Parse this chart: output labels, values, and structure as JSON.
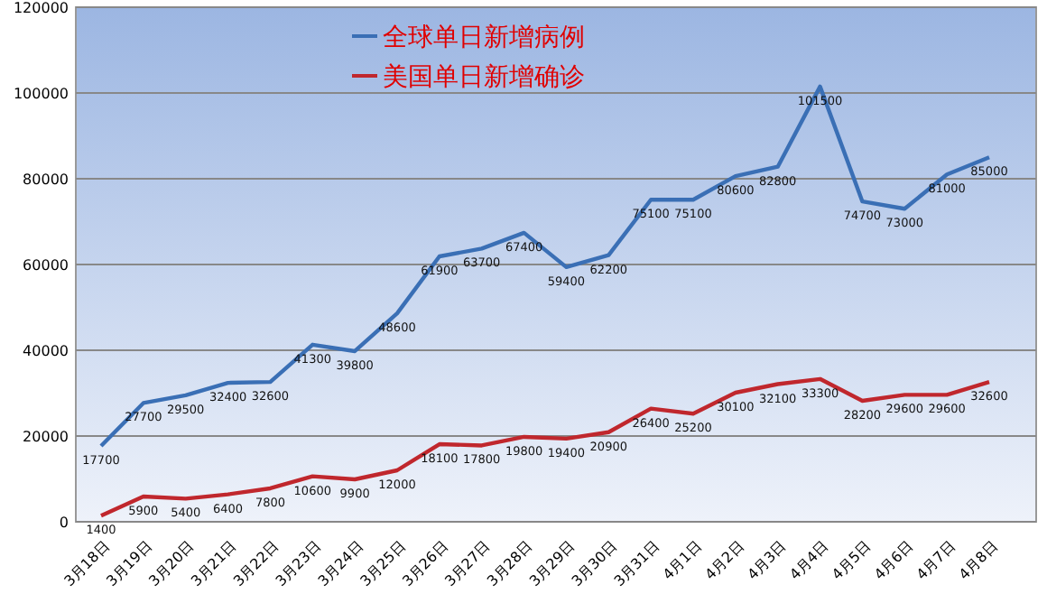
{
  "chart_data": {
    "type": "line",
    "categories": [
      "3月18日",
      "3月19日",
      "3月20日",
      "3月21日",
      "3月22日",
      "3月23日",
      "3月24日",
      "3月25日",
      "3月26日",
      "3月27日",
      "3月28日",
      "3月29日",
      "3月30日",
      "3月31日",
      "4月1日",
      "4月2日",
      "4月3日",
      "4月4日",
      "4月5日",
      "4月6日",
      "4月7日",
      "4月8日"
    ],
    "series": [
      {
        "name": "全球单日新增病例",
        "color": "#3a6fb5",
        "values": [
          17700,
          27700,
          29500,
          32400,
          32600,
          41300,
          39800,
          48600,
          61900,
          63700,
          67400,
          59400,
          62200,
          75100,
          75100,
          80600,
          82800,
          101500,
          74700,
          73000,
          81000,
          85000
        ]
      },
      {
        "name": "美国单日新增确诊",
        "color": "#c0272d",
        "values": [
          1400,
          5900,
          5400,
          6400,
          7800,
          10600,
          9900,
          12000,
          18100,
          17800,
          19800,
          19400,
          20900,
          26400,
          25200,
          30100,
          32100,
          33300,
          28200,
          29600,
          29600,
          32600
        ]
      }
    ],
    "ylim": [
      0,
      120000
    ],
    "yticks": [
      0,
      20000,
      40000,
      60000,
      80000,
      100000,
      120000
    ],
    "grid": "y",
    "legend": "top",
    "data_labels": true,
    "marker": "none"
  }
}
